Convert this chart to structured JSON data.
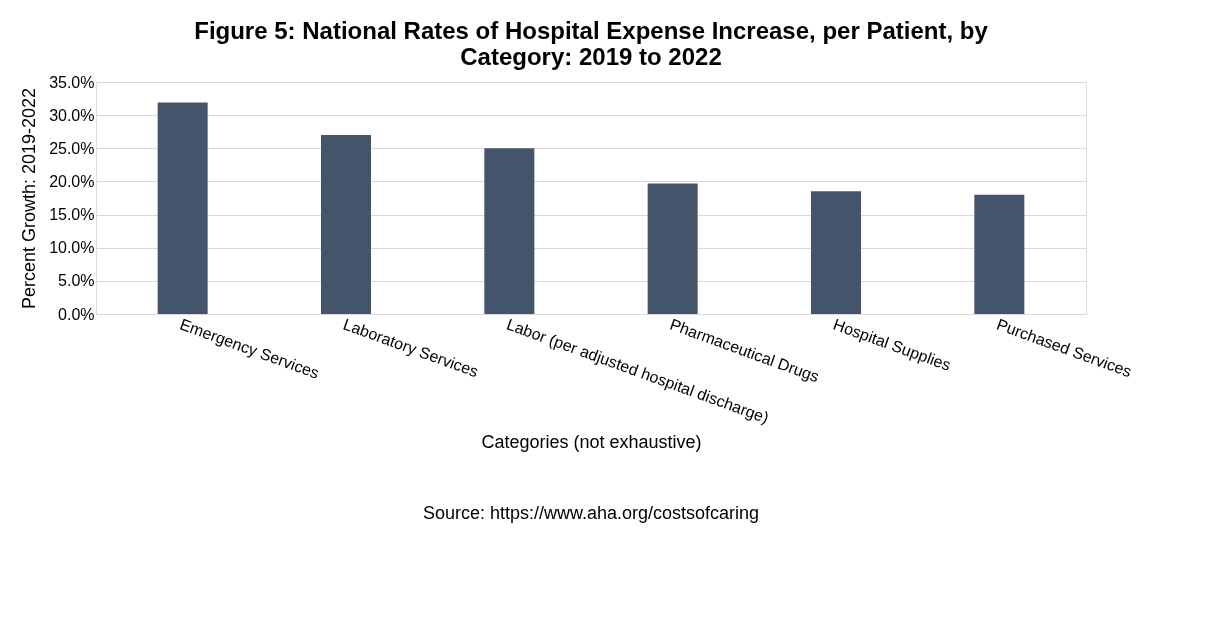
{
  "chart_data": {
    "type": "bar",
    "title": "Figure 5: National Rates of Hospital Expense Increase, per Patient, by\nCategory: 2019 to 2022",
    "xlabel": "Categories (not exhaustive)",
    "ylabel": "Percent Growth: 2019-2022",
    "categories": [
      "Emergency Services",
      "Laboratory Services",
      "Labor (per adjusted hospital discharge)",
      "Pharmaceutical Drugs",
      "Hospital Supplies",
      "Purchased Services"
    ],
    "values": [
      31.9,
      27.0,
      25.0,
      19.7,
      18.5,
      18.0
    ],
    "color": "#44546a",
    "ylim": [
      0,
      35
    ],
    "yticks": [
      {
        "value": 0,
        "label": "0.0%"
      },
      {
        "value": 5,
        "label": "5.0%"
      },
      {
        "value": 10,
        "label": "10.0%"
      },
      {
        "value": 15,
        "label": "15.0%"
      },
      {
        "value": 20,
        "label": "20.0%"
      },
      {
        "value": 25,
        "label": "25.0%"
      },
      {
        "value": 30,
        "label": "30.0%"
      },
      {
        "value": 35,
        "label": "35.0%"
      }
    ],
    "grid": "y",
    "annotations": [
      "Source: https://www.aha.org/costsofcaring"
    ]
  }
}
